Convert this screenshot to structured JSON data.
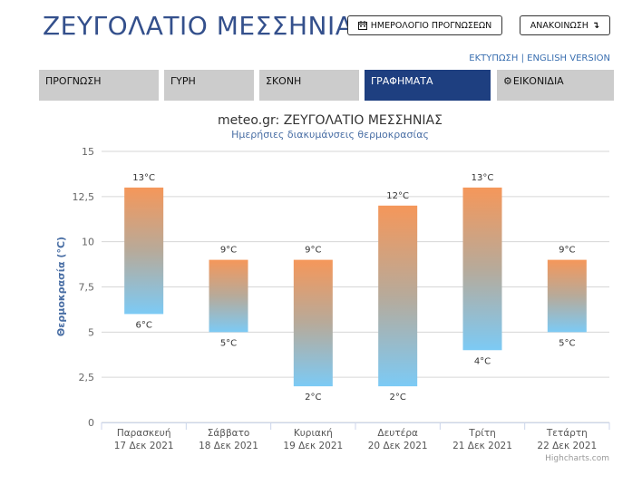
{
  "header": {
    "title": "ΖΕΥΓΟΛΑΤΙΟ ΜΕΣΣΗΝΙΑΣ",
    "forecast_calendar_label": "ΗΜΕΡΟΛΟΓΙΟ ΠΡΟΓΝΩΣΕΩΝ",
    "announcement_label": "ΑΝΑΚΟΙΝΩΣΗ",
    "print_label": "ΕΚΤΥΠΩΣΗ",
    "separator": "|",
    "english_label": "ENGLISH VERSION"
  },
  "nav": {
    "tabs": [
      {
        "label": "ΠΡΟΓΝΩΣΗ",
        "active": false
      },
      {
        "label": "ΓΥΡΗ",
        "active": false
      },
      {
        "label": "ΣΚΟΝΗ",
        "active": false
      },
      {
        "label": "ΓΡΑΦΗΜΑΤΑ",
        "active": true
      },
      {
        "label": "ΕΙΚΟΝΙΔΙΑ",
        "active": false
      }
    ]
  },
  "icons": {
    "calendar": "calendar-icon",
    "announcement": "arrow-down-icon",
    "images_tab": "gear-icon"
  },
  "colors": {
    "title": "#34508c",
    "active_tab": "#1e3f80",
    "bar_top": "#f5975a",
    "bar_bottom": "#7ccaf5"
  },
  "chart_data": {
    "type": "bar",
    "subtype": "columnrange",
    "title": "meteo.gr: ΖΕΥΓΟΛΑΤΙΟ ΜΕΣΣΗΝΙΑΣ",
    "subtitle": "Ημερήσιες διακυμάνσεις θερμοκρασίας",
    "ylabel": "Θερμοκρασία (°C)",
    "xlabel": "",
    "ylim": [
      0,
      15
    ],
    "yticks": [
      "0",
      "2,5",
      "5",
      "7,5",
      "10",
      "12,5",
      "15"
    ],
    "grid": true,
    "credits": "Highcharts.com",
    "categories": [
      {
        "day": "Παρασκευή",
        "date": "17 Δεκ 2021"
      },
      {
        "day": "Σάββατο",
        "date": "18 Δεκ 2021"
      },
      {
        "day": "Κυριακή",
        "date": "19 Δεκ 2021"
      },
      {
        "day": "Δευτέρα",
        "date": "20 Δεκ 2021"
      },
      {
        "day": "Τρίτη",
        "date": "21 Δεκ 2021"
      },
      {
        "day": "Τετάρτη",
        "date": "22 Δεκ 2021"
      }
    ],
    "min": [
      6,
      5,
      2,
      2,
      4,
      5
    ],
    "max": [
      13,
      9,
      9,
      12,
      13,
      9
    ],
    "min_labels": [
      "6°C",
      "5°C",
      "2°C",
      "2°C",
      "4°C",
      "5°C"
    ],
    "max_labels": [
      "13°C",
      "9°C",
      "9°C",
      "12°C",
      "13°C",
      "9°C"
    ]
  }
}
